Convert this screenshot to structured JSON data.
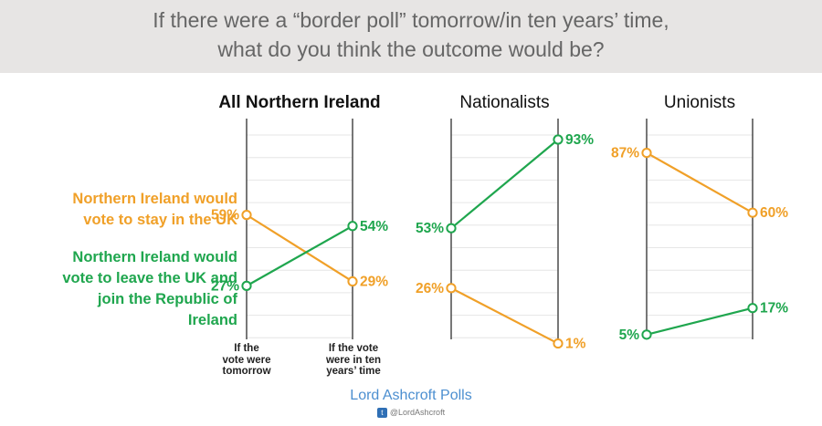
{
  "title": {
    "line1": "If there were a “border poll” tomorrow/in ten years’ time,",
    "line2": "what do you think the outcome would be?"
  },
  "legend": {
    "stay": {
      "line1": "Northern Ireland would",
      "line2": "vote to stay in the UK",
      "color": "#f0a028"
    },
    "leave": {
      "line1": "Northern Ireland would",
      "line2": "vote to leave the UK and",
      "line3": "join the Republic of",
      "line4": "Ireland",
      "color": "#1fa64e"
    }
  },
  "x_labels": {
    "tomorrow": [
      "If the",
      "vote were",
      "tomorrow"
    ],
    "ten_years": [
      "If the vote",
      "were in ten",
      "years’ time"
    ]
  },
  "branding": {
    "name": "Lord Ashcroft Polls",
    "handle": "@LordAshcroft",
    "icon": "twitter-icon"
  },
  "chart_data": [
    {
      "type": "line",
      "title": "All Northern Ireland",
      "categories": [
        "If the vote were tomorrow",
        "If the vote were in ten years’ time"
      ],
      "series": [
        {
          "name": "Northern Ireland would vote to stay in the UK",
          "values": [
            59,
            29
          ],
          "labels": [
            "59%",
            "29%"
          ],
          "color": "#f0a028"
        },
        {
          "name": "Northern Ireland would vote to leave the UK and join the Republic of Ireland",
          "values": [
            27,
            54
          ],
          "labels": [
            "27%",
            "54%"
          ],
          "color": "#1fa64e"
        }
      ],
      "grid": true
    },
    {
      "type": "line",
      "title": "Nationalists",
      "categories": [
        "If the vote were tomorrow",
        "If the vote were in ten years’ time"
      ],
      "series": [
        {
          "name": "Northern Ireland would vote to stay in the UK",
          "values": [
            26,
            1
          ],
          "labels": [
            "26%",
            "1%"
          ],
          "color": "#f0a028"
        },
        {
          "name": "Northern Ireland would vote to leave the UK and join the Republic of Ireland",
          "values": [
            53,
            93
          ],
          "labels": [
            "53%",
            "93%"
          ],
          "color": "#1fa64e"
        }
      ],
      "grid": true
    },
    {
      "type": "line",
      "title": "Unionists",
      "categories": [
        "If the vote were tomorrow",
        "If the vote were in ten years’ time"
      ],
      "series": [
        {
          "name": "Northern Ireland would vote to stay in the UK",
          "values": [
            87,
            60
          ],
          "labels": [
            "87%",
            "60%"
          ],
          "color": "#f0a028"
        },
        {
          "name": "Northern Ireland would vote to leave the UK and join the Republic of Ireland",
          "values": [
            5,
            17
          ],
          "labels": [
            "5%",
            "17%"
          ],
          "color": "#1fa64e"
        }
      ],
      "grid": true
    }
  ]
}
